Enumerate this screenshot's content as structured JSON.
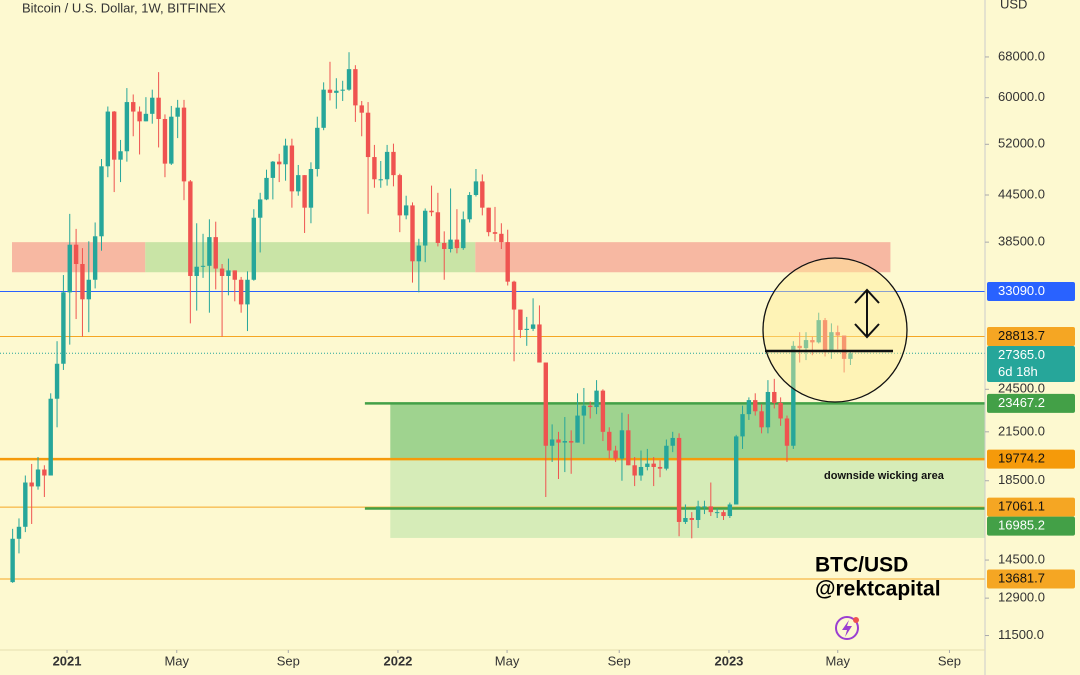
{
  "chart_data": {
    "type": "candlestick",
    "title": "Bitcoin / U.S. Dollar, 1W, BITFINEX",
    "y_axis_label": "USD",
    "log_scale": true,
    "up_color": "#26a69a",
    "down_color": "#ef5350",
    "open": [
      13550,
      15480,
      16060,
      18400,
      18180,
      19150,
      18800,
      23800,
      26500,
      33000,
      38200,
      36000,
      32300,
      34300,
      39200,
      48600,
      57500,
      49600,
      50900,
      59200,
      57500,
      55800,
      57100,
      60000,
      56200,
      49000,
      56600,
      58200,
      46400,
      34700,
      35700,
      35800,
      39100,
      35500,
      34700,
      35300,
      34300,
      31800,
      34300,
      41500,
      43900,
      46900,
      49300,
      48900,
      51800,
      45000,
      47300,
      42800,
      48200,
      54700,
      61500,
      60900,
      61300,
      61500,
      65500,
      58600,
      57300,
      50000,
      46700,
      46700,
      50800,
      47300,
      41800,
      43100,
      36300,
      38100,
      42400,
      42200,
      38400,
      37700,
      38800,
      37800,
      41300,
      44500,
      46400,
      42800,
      39700,
      39500,
      38500,
      34100,
      31300,
      29400,
      29500,
      29900,
      26600,
      20600,
      21000,
      20800,
      20900,
      20800,
      22600,
      23300,
      23200,
      24400,
      21500,
      20300,
      19800,
      21600,
      19400,
      18800,
      19300,
      19500,
      19300,
      19200,
      20600,
      21100,
      16300,
      16500,
      16400,
      17100,
      17100,
      16800,
      16800,
      16600,
      17200,
      21200,
      22700,
      23700,
      22900,
      21800,
      24300,
      23500,
      22400,
      20600,
      28000,
      27800,
      28500,
      28300,
      30300,
      27600,
      29200,
      28900,
      26900
    ],
    "high": [
      15960,
      16480,
      18800,
      19480,
      19900,
      19400,
      24200,
      28400,
      34800,
      42000,
      40100,
      37800,
      38600,
      40900,
      49700,
      58400,
      57600,
      52700,
      61800,
      60600,
      58400,
      60100,
      61500,
      64900,
      57000,
      58500,
      59600,
      59600,
      46600,
      40800,
      39500,
      41300,
      41000,
      36000,
      36600,
      35300,
      34600,
      35200,
      42600,
      44800,
      48100,
      49400,
      50500,
      52900,
      52900,
      48800,
      47300,
      49200,
      56600,
      62900,
      67000,
      63700,
      63200,
      69000,
      66300,
      59400,
      59200,
      51900,
      49400,
      51900,
      52100,
      47500,
      44400,
      43500,
      38900,
      42700,
      45800,
      44800,
      39800,
      45400,
      42600,
      42300,
      44900,
      48200,
      47400,
      42800,
      42900,
      40800,
      40000,
      34200,
      31300,
      30600,
      32400,
      31700,
      26600,
      22000,
      21500,
      22500,
      21600,
      24200,
      24600,
      23600,
      25200,
      24500,
      21800,
      20600,
      22800,
      22700,
      19900,
      20300,
      20400,
      19900,
      19700,
      21000,
      21500,
      21400,
      17200,
      16800,
      17400,
      17400,
      18400,
      17000,
      16900,
      17300,
      21300,
      23300,
      23900,
      24200,
      23400,
      25200,
      25300,
      23900,
      22600,
      28400,
      29200,
      29200,
      28800,
      31000,
      30500,
      30000,
      29800,
      28900,
      27600
    ],
    "low": [
      13520,
      14800,
      15800,
      16200,
      18000,
      17600,
      18800,
      21800,
      26000,
      28100,
      30400,
      28800,
      29200,
      33400,
      37500,
      47000,
      44900,
      46300,
      49300,
      53300,
      50400,
      55800,
      55400,
      51500,
      47000,
      48800,
      53000,
      43800,
      30000,
      31200,
      34500,
      31000,
      33300,
      28800,
      32700,
      32100,
      31000,
      29300,
      34200,
      37300,
      43800,
      43900,
      46300,
      46500,
      42800,
      44400,
      39600,
      40800,
      47100,
      54300,
      59500,
      58000,
      59400,
      61300,
      55700,
      53300,
      42000,
      45500,
      45500,
      45800,
      45700,
      39700,
      41300,
      34000,
      33000,
      36200,
      41700,
      38000,
      34300,
      37300,
      37200,
      37600,
      40900,
      44300,
      41800,
      39200,
      38600,
      37700,
      33700,
      26700,
      28700,
      28000,
      29300,
      26600,
      17600,
      19600,
      18600,
      19000,
      18900,
      20800,
      20700,
      22400,
      22700,
      20900,
      19800,
      19600,
      18500,
      19400,
      18200,
      18500,
      19100,
      18200,
      18700,
      19100,
      20200,
      15600,
      16200,
      15500,
      16000,
      16700,
      16600,
      16500,
      16400,
      16500,
      17200,
      20400,
      22300,
      22600,
      21400,
      21400,
      23100,
      21900,
      19600,
      20400,
      26600,
      26800,
      27200,
      28200,
      27100,
      26900,
      27700,
      25800,
      26400
    ],
    "close": [
      15480,
      16060,
      18400,
      18180,
      19150,
      18800,
      23800,
      26500,
      33000,
      38200,
      36000,
      32300,
      34300,
      39200,
      48600,
      57500,
      49600,
      50900,
      59200,
      57500,
      55800,
      57100,
      60000,
      56200,
      49000,
      56600,
      58200,
      46400,
      34700,
      35700,
      35800,
      39100,
      35500,
      34700,
      35300,
      34300,
      31800,
      34300,
      41500,
      43900,
      46900,
      49300,
      48900,
      51800,
      45000,
      47300,
      42800,
      48200,
      54700,
      61500,
      60900,
      61300,
      61500,
      65500,
      58600,
      57300,
      50000,
      46700,
      46700,
      50800,
      47300,
      41800,
      43100,
      36300,
      38100,
      42400,
      42200,
      38400,
      37700,
      38800,
      37800,
      41300,
      44500,
      46400,
      42800,
      39700,
      39500,
      38500,
      34100,
      31300,
      29400,
      29500,
      29900,
      26600,
      20600,
      21000,
      20800,
      20900,
      20800,
      22600,
      23300,
      23200,
      24400,
      21500,
      20300,
      19800,
      21600,
      19400,
      18800,
      19300,
      19500,
      19300,
      19200,
      20600,
      21100,
      16300,
      16500,
      16400,
      17100,
      17100,
      16800,
      16800,
      16600,
      17200,
      21200,
      22700,
      23700,
      22900,
      21800,
      24300,
      23500,
      22400,
      20600,
      28000,
      27800,
      28500,
      28300,
      30300,
      27600,
      29200,
      28900,
      26900,
      27365
    ],
    "xlim": [
      -1.99,
      153.2
    ],
    "xticks": [
      {
        "value": 8.57,
        "label": "2021"
      },
      {
        "value": 25.86,
        "label": "May"
      },
      {
        "value": 43.43,
        "label": "Sep"
      },
      {
        "value": 60.71,
        "label": "2022"
      },
      {
        "value": 77.9,
        "label": "May"
      },
      {
        "value": 95.57,
        "label": "Sep"
      },
      {
        "value": 112.86,
        "label": "2023"
      },
      {
        "value": 130,
        "label": "May"
      },
      {
        "value": 147.6,
        "label": "Sep"
      }
    ],
    "ylim": [
      11000,
      81000
    ],
    "yticks": [
      {
        "value": 68000,
        "label": "68000.0"
      },
      {
        "value": 60000,
        "label": "60000.0"
      },
      {
        "value": 52000,
        "label": "52000.0"
      },
      {
        "value": 44500,
        "label": "44500.0"
      },
      {
        "value": 38500,
        "label": "38500.0"
      },
      {
        "value": 24500,
        "label": "24500.0"
      },
      {
        "value": 21500,
        "label": "21500.0"
      },
      {
        "value": 18500,
        "label": "18500.0"
      },
      {
        "value": 14500,
        "label": "14500.0"
      },
      {
        "value": 12900,
        "label": "12900.0"
      },
      {
        "value": 11500,
        "label": "11500.0"
      }
    ],
    "zones": [
      {
        "from": -0.1,
        "to": 20.9,
        "ylim": [
          35100,
          38500
        ],
        "color": "#f7b8a2"
      },
      {
        "from": 20.9,
        "to": 72.9,
        "ylim": [
          35100,
          38500
        ],
        "color": "#c9e4a6"
      },
      {
        "from": 72.9,
        "to": 138.3,
        "ylim": [
          35100,
          38500
        ],
        "color": "#f7b8a2"
      },
      {
        "from": 59.5,
        "to": 153.2,
        "ylim": [
          19774.2,
          23467.2
        ],
        "color": "#9fd38f"
      },
      {
        "from": 59.5,
        "to": 153.2,
        "ylim": [
          15520,
          19774.2
        ],
        "color": "#d6ecb8"
      }
    ],
    "levels": [
      {
        "value": 33090,
        "label": "33090.0",
        "color": "#2962ff",
        "width": 1
      },
      {
        "value": 28813.7,
        "label": "28813.7",
        "color": "#f5a623",
        "width": 1
      },
      {
        "value": 27365,
        "label": "27365.0",
        "color": "#26a69a",
        "width": 1,
        "style": "dotted",
        "countdown": "6d 18h"
      },
      {
        "value": 23467.2,
        "label": "23467.2",
        "color": "#43a047",
        "width": 2.5,
        "from": 55.5
      },
      {
        "value": 19774.2,
        "label": "19774.2",
        "color": "#f59a0a",
        "width": 2.5
      },
      {
        "value": 17061.1,
        "label": "17061.1",
        "color": "#f5a623",
        "width": 1
      },
      {
        "value": 16985.2,
        "label": "16985.2",
        "color": "#43a047",
        "width": 2.5,
        "from": 55.5
      },
      {
        "value": 13681.7,
        "label": "13681.7",
        "color": "#f5a623",
        "width": 1
      }
    ],
    "annotations": [
      "downside wicking area",
      "BTC/USD",
      "@rektcapital"
    ]
  }
}
